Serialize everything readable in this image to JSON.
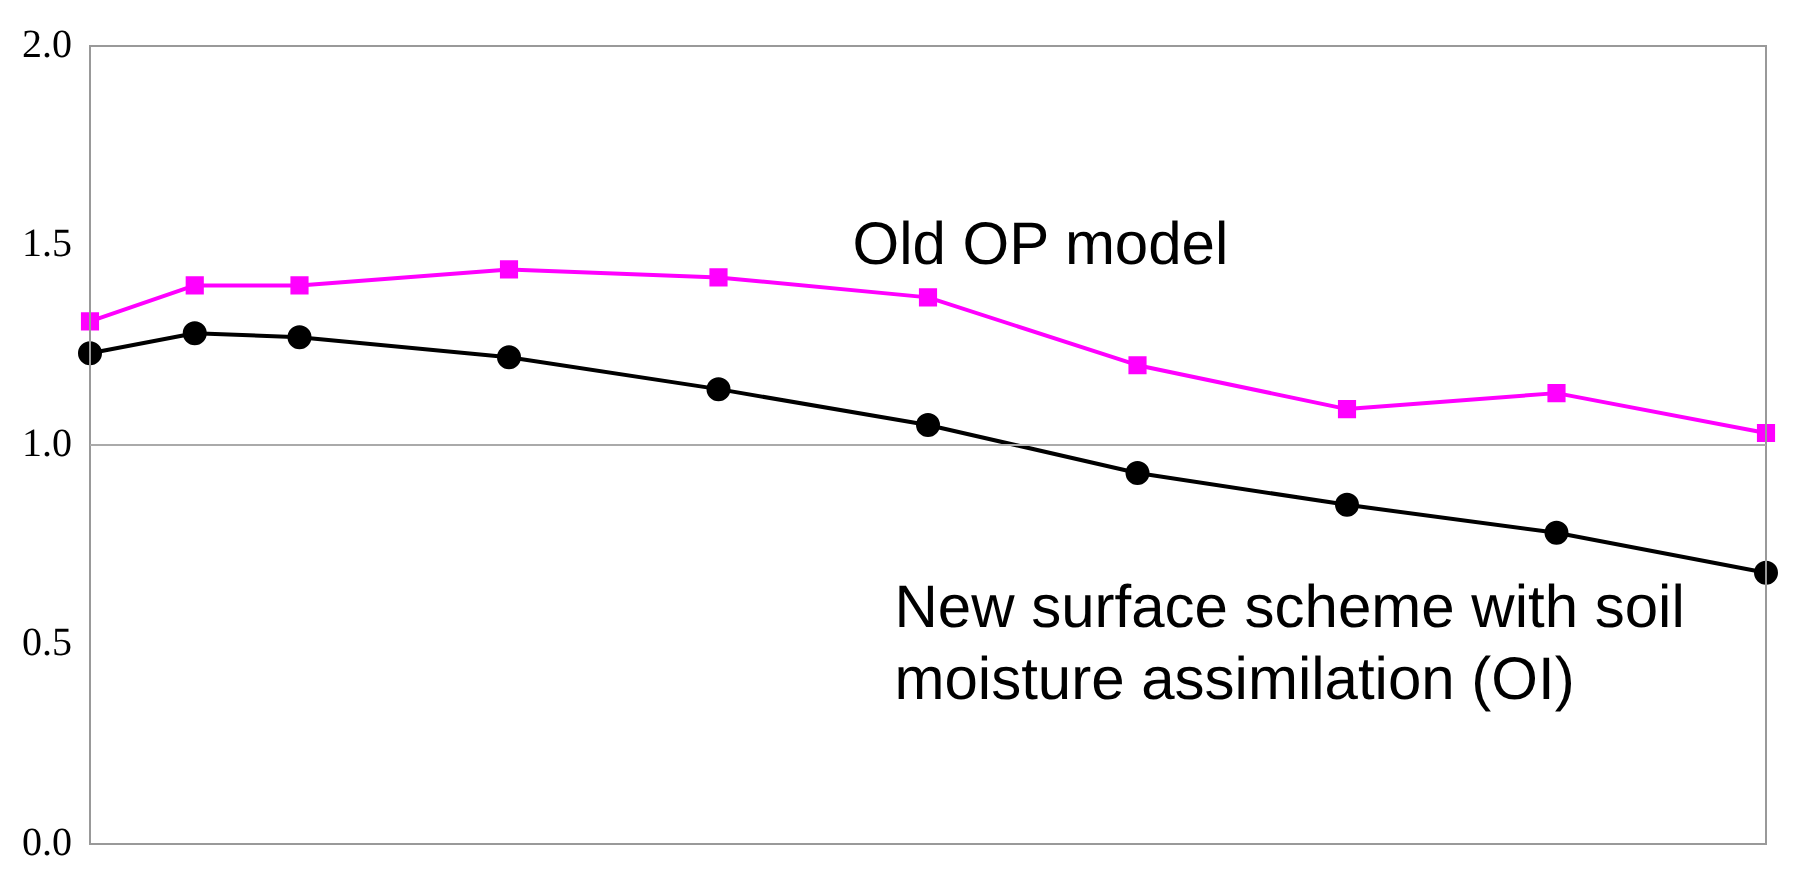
{
  "chart_data": {
    "type": "line",
    "categories": [
      null,
      null,
      null,
      null,
      null,
      null,
      null,
      null,
      null,
      null,
      null,
      null,
      null,
      null,
      null,
      null,
      null
    ],
    "series": [
      {
        "name": "Old OP model",
        "color": "#ff00ff",
        "marker": "square",
        "values": [
          1.31,
          1.4,
          1.4,
          null,
          1.44,
          null,
          1.42,
          null,
          1.37,
          null,
          1.2,
          null,
          1.09,
          null,
          1.13,
          null,
          1.03
        ]
      },
      {
        "name": "New surface scheme with soil moisture assimilation (OI)",
        "color": "#000000",
        "marker": "circle",
        "values": [
          1.23,
          1.28,
          1.27,
          null,
          1.22,
          null,
          1.14,
          null,
          1.05,
          null,
          0.93,
          null,
          0.85,
          null,
          0.78,
          null,
          0.68
        ]
      }
    ],
    "ylim": [
      0,
      2
    ],
    "yticks": [
      {
        "value": 0,
        "label": "0.0"
      },
      {
        "value": 0.5,
        "label": "0.5"
      },
      {
        "value": 1,
        "label": "1.0"
      },
      {
        "value": 1.5,
        "label": "1.5"
      },
      {
        "value": 2,
        "label": "2.0"
      }
    ],
    "ref_lines": [
      {
        "axis": "y",
        "value": 1,
        "color": "#aaaaaa"
      }
    ],
    "tick_labels": "y",
    "grid": false,
    "legend": false,
    "line_style": "solid"
  }
}
